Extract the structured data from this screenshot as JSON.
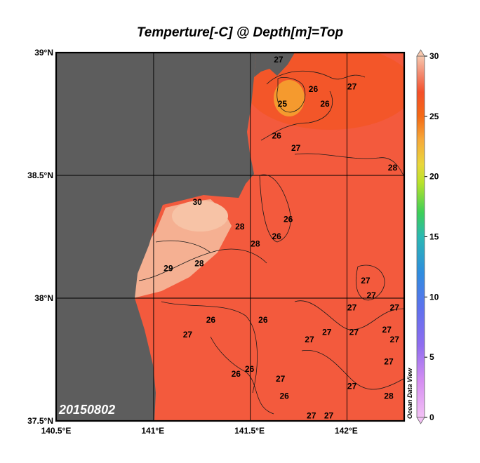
{
  "title": "Temperture[-C] @ Depth[m]=Top",
  "date_stamp": "20150802",
  "watermark": "Ocean Data View",
  "colors": {
    "land": "#5d5d5d",
    "sea": "#f35a3d",
    "frame": "#000000"
  },
  "chart_data": {
    "type": "heatmap",
    "title": "Temperture[-C] @ Depth[m]=Top",
    "xlabel": "",
    "ylabel": "",
    "xlim": [
      140.5,
      142.3
    ],
    "ylim": [
      37.5,
      39.0
    ],
    "x_ticks": [
      {
        "value": 140.5,
        "label": "140.5°E"
      },
      {
        "value": 141.0,
        "label": "141°E"
      },
      {
        "value": 141.5,
        "label": "141.5°E"
      },
      {
        "value": 142.0,
        "label": "142°E"
      }
    ],
    "y_ticks": [
      {
        "value": 37.5,
        "label": "37.5°N"
      },
      {
        "value": 38.0,
        "label": "38°N"
      },
      {
        "value": 38.5,
        "label": "38.5°N"
      },
      {
        "value": 39.0,
        "label": "39°N"
      }
    ],
    "grid": true,
    "colorbar": {
      "range": [
        0,
        30
      ],
      "ticks": [
        0,
        5,
        10,
        15,
        20,
        25,
        30
      ],
      "placement": "right",
      "stops": [
        {
          "value": 0,
          "color": "#f3c0f5"
        },
        {
          "value": 3,
          "color": "#d58ef2"
        },
        {
          "value": 6,
          "color": "#8f6df0"
        },
        {
          "value": 9,
          "color": "#5f71ee"
        },
        {
          "value": 12,
          "color": "#2f8ddf"
        },
        {
          "value": 15,
          "color": "#2bb8b3"
        },
        {
          "value": 17,
          "color": "#3dcf58"
        },
        {
          "value": 19.5,
          "color": "#b9e22b"
        },
        {
          "value": 21,
          "color": "#e9d63b"
        },
        {
          "value": 23,
          "color": "#f6aa3a"
        },
        {
          "value": 25,
          "color": "#f46a16"
        },
        {
          "value": 27,
          "color": "#f4502a"
        },
        {
          "value": 28.5,
          "color": "#f3896f"
        },
        {
          "value": 30,
          "color": "#f7c7ad"
        }
      ]
    },
    "contour_labels": [
      {
        "text": "27",
        "lon": 141.65,
        "lat": 38.96
      },
      {
        "text": "26",
        "lon": 141.83,
        "lat": 38.84
      },
      {
        "text": "27",
        "lon": 142.03,
        "lat": 38.85
      },
      {
        "text": "25",
        "lon": 141.67,
        "lat": 38.78
      },
      {
        "text": "26",
        "lon": 141.89,
        "lat": 38.78
      },
      {
        "text": "26",
        "lon": 141.64,
        "lat": 38.65
      },
      {
        "text": "27",
        "lon": 141.74,
        "lat": 38.6
      },
      {
        "text": "28",
        "lon": 142.24,
        "lat": 38.52
      },
      {
        "text": "30",
        "lon": 141.23,
        "lat": 38.38
      },
      {
        "text": "28",
        "lon": 141.45,
        "lat": 38.28
      },
      {
        "text": "26",
        "lon": 141.7,
        "lat": 38.31
      },
      {
        "text": "26",
        "lon": 141.64,
        "lat": 38.24
      },
      {
        "text": "28",
        "lon": 141.53,
        "lat": 38.21
      },
      {
        "text": "29",
        "lon": 141.08,
        "lat": 38.11
      },
      {
        "text": "28",
        "lon": 141.24,
        "lat": 38.13
      },
      {
        "text": "27",
        "lon": 142.1,
        "lat": 38.06
      },
      {
        "text": "27",
        "lon": 142.13,
        "lat": 38.0
      },
      {
        "text": "27",
        "lon": 142.03,
        "lat": 37.95
      },
      {
        "text": "27",
        "lon": 142.25,
        "lat": 37.95
      },
      {
        "text": "26",
        "lon": 141.3,
        "lat": 37.9
      },
      {
        "text": "26",
        "lon": 141.57,
        "lat": 37.9
      },
      {
        "text": "27",
        "lon": 141.9,
        "lat": 37.85
      },
      {
        "text": "27",
        "lon": 142.04,
        "lat": 37.85
      },
      {
        "text": "27",
        "lon": 142.21,
        "lat": 37.86
      },
      {
        "text": "27",
        "lon": 141.18,
        "lat": 37.84
      },
      {
        "text": "27",
        "lon": 141.81,
        "lat": 37.82
      },
      {
        "text": "27",
        "lon": 142.25,
        "lat": 37.82
      },
      {
        "text": "26",
        "lon": 141.5,
        "lat": 37.7
      },
      {
        "text": "26",
        "lon": 141.43,
        "lat": 37.68
      },
      {
        "text": "27",
        "lon": 141.66,
        "lat": 37.66
      },
      {
        "text": "27",
        "lon": 142.22,
        "lat": 37.73
      },
      {
        "text": "27",
        "lon": 142.03,
        "lat": 37.63
      },
      {
        "text": "26",
        "lon": 141.68,
        "lat": 37.59
      },
      {
        "text": "28",
        "lon": 142.22,
        "lat": 37.59
      },
      {
        "text": "27",
        "lon": 141.82,
        "lat": 37.51
      },
      {
        "text": "27",
        "lon": 141.91,
        "lat": 37.51
      }
    ]
  }
}
